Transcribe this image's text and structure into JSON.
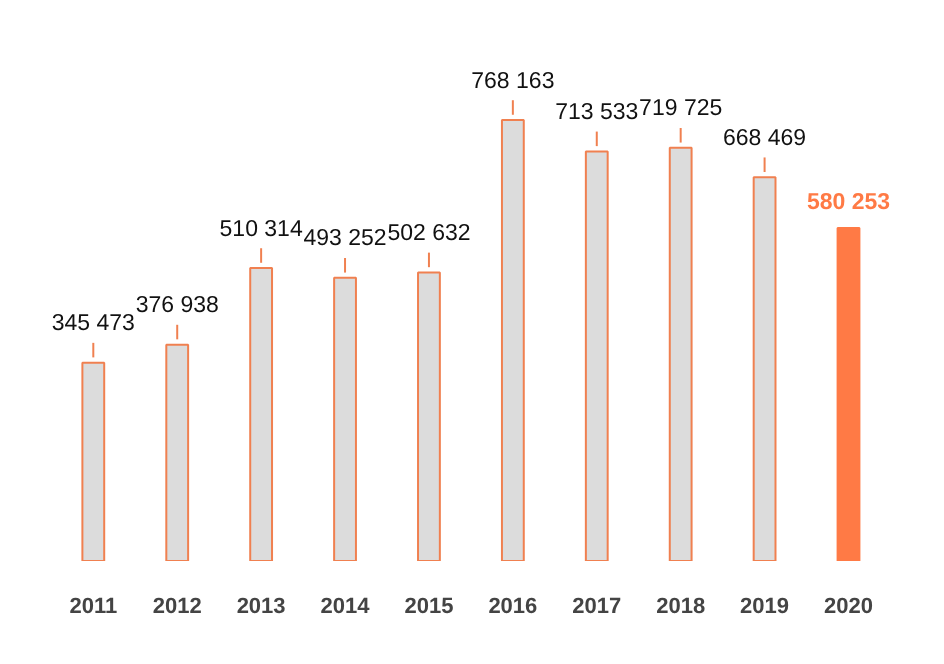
{
  "chart_data": {
    "type": "bar",
    "categories": [
      "2011",
      "2012",
      "2013",
      "2014",
      "2015",
      "2016",
      "2017",
      "2018",
      "2019",
      "2020"
    ],
    "values": [
      345473,
      376938,
      510314,
      493252,
      502632,
      768163,
      713533,
      719725,
      668469,
      580253
    ],
    "value_labels": [
      "345 473",
      "376 938",
      "510 314",
      "493 252",
      "502 632",
      "768 163",
      "713 533",
      "719 725",
      "668 469",
      "580 253"
    ],
    "colors": [
      "#dcdcdc",
      "#dcdcdc",
      "#dcdcdc",
      "#dcdcdc",
      "#dcdcdc",
      "#dcdcdc",
      "#dcdcdc",
      "#dcdcdc",
      "#dcdcdc",
      "#ff7a45"
    ],
    "grid": false
  }
}
